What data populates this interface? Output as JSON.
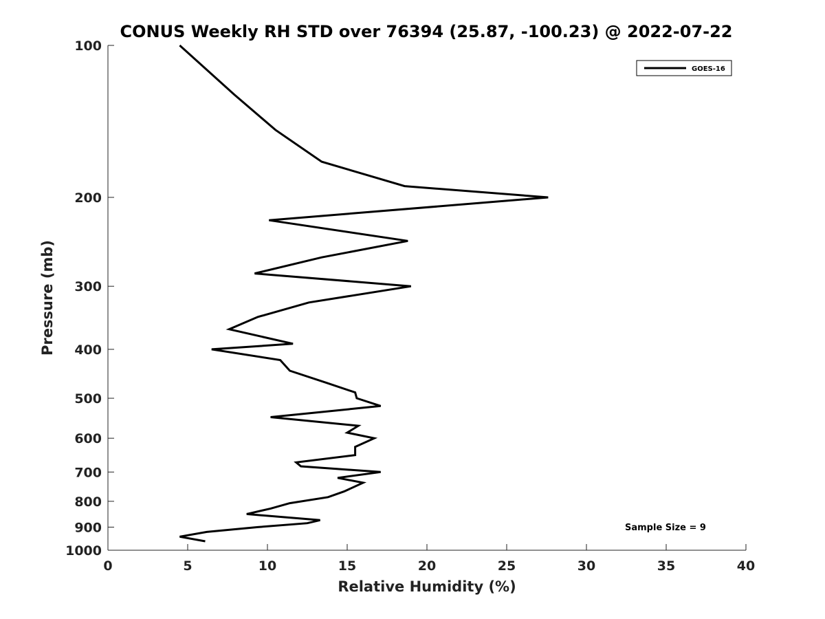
{
  "chart_data": {
    "type": "line",
    "title": "CONUS Weekly RH STD over 76394 (25.87, -100.23) @ 2022-07-22",
    "xlabel": "Relative Humidity (%)",
    "ylabel": "Pressure (mb)",
    "xlim": [
      0,
      40
    ],
    "ylim": [
      100,
      1000
    ],
    "yscale": "log",
    "y_reversed": true,
    "x_ticks": [
      0,
      5,
      10,
      15,
      20,
      25,
      30,
      35,
      40
    ],
    "x_tick_labels": [
      "0",
      "5",
      "10",
      "15",
      "20",
      "25",
      "30",
      "35",
      "40"
    ],
    "y_ticks": [
      100,
      200,
      300,
      400,
      500,
      600,
      700,
      800,
      900,
      1000
    ],
    "y_tick_labels": [
      "100",
      "200",
      "300",
      "400",
      "500",
      "600",
      "700",
      "800",
      "900",
      "1000"
    ],
    "grid": false,
    "legend_position": "top-right",
    "annotation": "Sample Size = 9",
    "series": [
      {
        "name": "GOES-16",
        "color": "#000000",
        "x": [
          4.5,
          7.9,
          10.5,
          13.4,
          18.6,
          27.6,
          10.1,
          18.8,
          13.4,
          9.2,
          19.0,
          12.6,
          9.4,
          7.6,
          11.6,
          6.5,
          10.8,
          11.4,
          13.7,
          15.5,
          15.6,
          17.1,
          10.2,
          15.7,
          15.0,
          16.7,
          15.5,
          15.5,
          11.8,
          12.1,
          17.1,
          14.4,
          16.0,
          14.8,
          13.8,
          11.4,
          10.2,
          8.7,
          13.3,
          12.5,
          9.4,
          6.2,
          4.5,
          6.1
        ],
        "y": [
          100,
          125,
          147,
          170,
          190,
          200,
          222,
          244,
          263,
          283,
          300,
          323,
          345,
          365,
          390,
          400,
          420,
          441,
          466,
          487,
          500,
          518,
          545,
          567,
          585,
          600,
          624,
          648,
          670,
          682,
          700,
          719,
          735,
          765,
          785,
          807,
          827,
          848,
          872,
          884,
          900,
          920,
          940,
          960
        ]
      }
    ]
  }
}
